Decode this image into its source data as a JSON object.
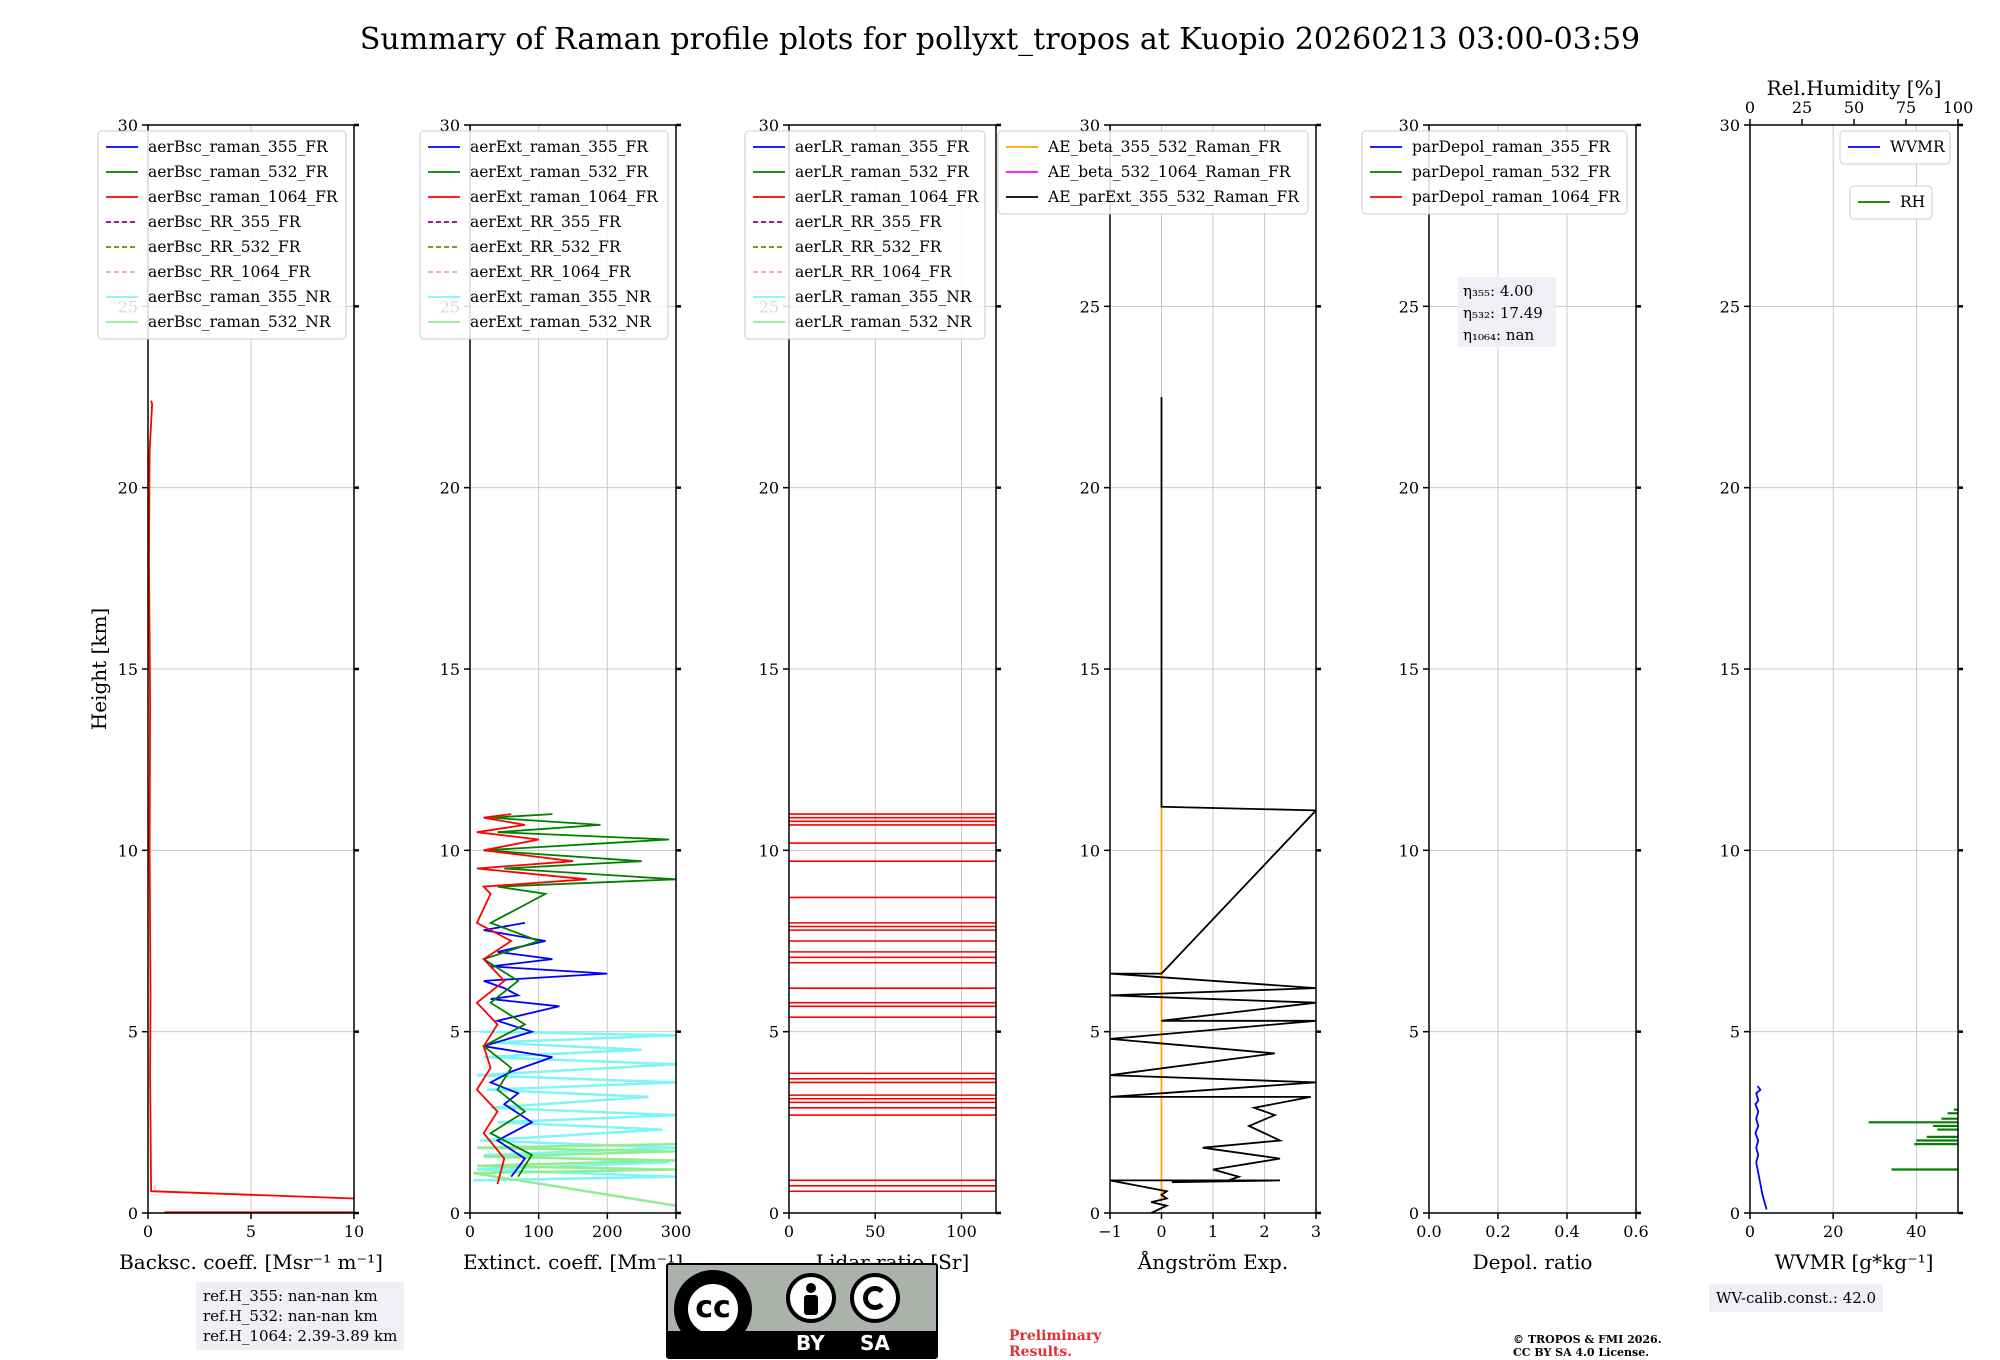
{
  "title": "Summary of Raman profile plots for pollyxt_tropos at Kuopio 20260213 03:00-03:59",
  "colors": {
    "blue": "#0000ff",
    "green": "#008000",
    "red": "#ff0000",
    "purple": "#800080",
    "olive": "#808000",
    "salmon": "#f4a3a0",
    "cyan": "#7ff5f5",
    "lightgreen": "#90ee90",
    "orange": "#ffa500",
    "magenta": "#ff00ff",
    "black": "#000000",
    "grid": "#c8c8c8"
  },
  "chart_data": [
    {
      "type": "line",
      "id": "backscatter",
      "xlabel": "Backsc. coeff. [Msr⁻¹ m⁻¹]",
      "ylabel": "Height [km]",
      "xlim": [
        0,
        10
      ],
      "ylim": [
        0,
        30
      ],
      "xticks": [
        "0",
        "5",
        "10"
      ],
      "xtick_values": [
        0,
        5,
        10
      ],
      "yticks": [
        "0",
        "5",
        "10",
        "15",
        "20",
        "25",
        "30"
      ],
      "ytick_values": [
        0,
        5,
        10,
        15,
        20,
        25,
        30
      ],
      "legend": [
        {
          "label": "aerBsc_raman_355_FR",
          "color": "#0000ff",
          "dash": false
        },
        {
          "label": "aerBsc_raman_532_FR",
          "color": "#008000",
          "dash": false
        },
        {
          "label": "aerBsc_raman_1064_FR",
          "color": "#ff0000",
          "dash": false
        },
        {
          "label": "aerBsc_RR_355_FR",
          "color": "#800080",
          "dash": true
        },
        {
          "label": "aerBsc_RR_532_FR",
          "color": "#808000",
          "dash": true
        },
        {
          "label": "aerBsc_RR_1064_FR",
          "color": "#f4a3a0",
          "dash": true
        },
        {
          "label": "aerBsc_raman_355_NR",
          "color": "#7ff5f5",
          "dash": false
        },
        {
          "label": "aerBsc_raman_532_NR",
          "color": "#90ee90",
          "dash": false
        }
      ],
      "series": [
        {
          "name": "aerBsc_raman_1064_FR",
          "color": "#ff0000",
          "x": [
            10,
            0.15,
            0.1,
            0.12,
            0.08,
            0.1,
            0.05,
            0.08,
            0.2,
            0.15
          ],
          "y": [
            0.4,
            0.6,
            3.8,
            6,
            10,
            14,
            18,
            21,
            22.3,
            22.4
          ]
        },
        {
          "name": "aerBsc_raman_1064_FR_low",
          "color": "#ff0000",
          "x": [
            0.8,
            10
          ],
          "y": [
            0.02,
            0.02
          ]
        }
      ]
    },
    {
      "type": "line",
      "id": "extinction",
      "xlabel": "Extinct. coeff. [Mm⁻¹]",
      "xlim": [
        0,
        300
      ],
      "ylim": [
        0,
        30
      ],
      "xticks": [
        "0",
        "100",
        "200",
        "300"
      ],
      "xtick_values": [
        0,
        100,
        200,
        300
      ],
      "yticks": [
        "0",
        "5",
        "10",
        "15",
        "20",
        "25",
        "30"
      ],
      "ytick_values": [
        0,
        5,
        10,
        15,
        20,
        25,
        30
      ],
      "legend": [
        {
          "label": "aerExt_raman_355_FR",
          "color": "#0000ff",
          "dash": false
        },
        {
          "label": "aerExt_raman_532_FR",
          "color": "#008000",
          "dash": false
        },
        {
          "label": "aerExt_raman_1064_FR",
          "color": "#ff0000",
          "dash": false
        },
        {
          "label": "aerExt_RR_355_FR",
          "color": "#800080",
          "dash": true
        },
        {
          "label": "aerExt_RR_532_FR",
          "color": "#808000",
          "dash": true
        },
        {
          "label": "aerExt_RR_1064_FR",
          "color": "#f4a3a0",
          "dash": true
        },
        {
          "label": "aerExt_raman_355_NR",
          "color": "#7ff5f5",
          "dash": false
        },
        {
          "label": "aerExt_raman_532_NR",
          "color": "#90ee90",
          "dash": false
        }
      ],
      "series": [
        {
          "name": "aerExt_raman_355_NR",
          "color": "#7ff5f5",
          "x": [
            5,
            300,
            10,
            290,
            20,
            300,
            15,
            280,
            40,
            300,
            30,
            260,
            25,
            300,
            10,
            300,
            20,
            250,
            30,
            300,
            15
          ],
          "y": [
            0.9,
            1.0,
            1.2,
            1.4,
            1.6,
            1.8,
            2.0,
            2.3,
            2.5,
            2.7,
            2.9,
            3.2,
            3.4,
            3.6,
            3.8,
            4.1,
            4.3,
            4.5,
            4.7,
            4.9,
            5.0
          ]
        },
        {
          "name": "aerExt_raman_532_NR",
          "color": "#90ee90",
          "x": [
            300,
            5,
            300,
            10,
            300,
            20,
            300,
            10,
            300
          ],
          "y": [
            0.2,
            1.1,
            1.2,
            1.3,
            1.45,
            1.55,
            1.7,
            1.8,
            1.9
          ]
        },
        {
          "name": "aerExt_raman_355_FR",
          "color": "#0000ff",
          "x": [
            60,
            80,
            40,
            90,
            50,
            70,
            30,
            60,
            120,
            20,
            90,
            40,
            130,
            30,
            70,
            50,
            20,
            200,
            30,
            120,
            40,
            110,
            20,
            80
          ],
          "y": [
            1.0,
            1.5,
            2.0,
            2.5,
            3.0,
            3.3,
            3.6,
            3.9,
            4.3,
            4.6,
            5.0,
            5.3,
            5.7,
            5.9,
            6.0,
            6.2,
            6.4,
            6.6,
            6.8,
            7.0,
            7.2,
            7.5,
            7.8,
            8.0
          ]
        },
        {
          "name": "aerExt_raman_532_FR",
          "color": "#008000",
          "x": [
            70,
            90,
            30,
            80,
            40,
            60,
            20,
            80,
            30,
            70,
            20,
            100,
            30,
            110,
            40,
            300,
            50,
            250,
            20,
            290,
            40,
            190,
            30,
            120
          ],
          "y": [
            1.0,
            1.6,
            2.2,
            2.8,
            3.4,
            4.0,
            4.6,
            5.2,
            5.8,
            6.4,
            7.0,
            7.5,
            8.0,
            8.8,
            9.0,
            9.2,
            9.5,
            9.7,
            10.0,
            10.3,
            10.5,
            10.7,
            10.9,
            11.0
          ]
        },
        {
          "name": "aerExt_raman_1064_FR",
          "color": "#ff0000",
          "x": [
            40,
            50,
            20,
            40,
            10,
            30,
            20,
            40,
            10,
            50,
            20,
            60,
            10,
            30,
            20,
            170,
            10,
            150,
            20,
            100,
            10,
            80,
            20,
            60
          ],
          "y": [
            0.8,
            1.5,
            2.2,
            2.8,
            3.4,
            4.0,
            4.6,
            5.2,
            5.8,
            6.4,
            7.0,
            7.5,
            8.0,
            8.8,
            9.0,
            9.2,
            9.5,
            9.7,
            10.0,
            10.3,
            10.5,
            10.7,
            10.9,
            11.0
          ]
        }
      ]
    },
    {
      "type": "line",
      "id": "lidar_ratio",
      "xlabel": "Lidar ratio [Sr]",
      "xlim": [
        0,
        120
      ],
      "ylim": [
        0,
        30
      ],
      "xticks": [
        "0",
        "50",
        "100"
      ],
      "xtick_values": [
        0,
        50,
        100
      ],
      "yticks": [
        "0",
        "5",
        "10",
        "15",
        "20",
        "25",
        "30"
      ],
      "ytick_values": [
        0,
        5,
        10,
        15,
        20,
        25,
        30
      ],
      "legend": [
        {
          "label": "aerLR_raman_355_FR",
          "color": "#0000ff",
          "dash": false
        },
        {
          "label": "aerLR_raman_532_FR",
          "color": "#008000",
          "dash": false
        },
        {
          "label": "aerLR_raman_1064_FR",
          "color": "#ff0000",
          "dash": false
        },
        {
          "label": "aerLR_RR_355_FR",
          "color": "#800080",
          "dash": true
        },
        {
          "label": "aerLR_RR_532_FR",
          "color": "#808000",
          "dash": true
        },
        {
          "label": "aerLR_RR_1064_FR",
          "color": "#f4a3a0",
          "dash": true
        },
        {
          "label": "aerLR_raman_355_NR",
          "color": "#7ff5f5",
          "dash": false
        },
        {
          "label": "aerLR_raman_532_NR",
          "color": "#90ee90",
          "dash": false
        }
      ],
      "hlines": [
        {
          "name": "aerLR_raman_1064_FR",
          "color": "#ff0000",
          "y": [
            0.6,
            0.75,
            0.9,
            2.7,
            2.9,
            3.05,
            3.15,
            3.25,
            3.6,
            3.7,
            3.85,
            5.4,
            5.7,
            5.8,
            6.2,
            6.9,
            7.05,
            7.2,
            7.5,
            7.8,
            7.9,
            8.0,
            8.7,
            9.7,
            10.2,
            10.7,
            10.8,
            10.9,
            11.0
          ],
          "x_from": 0,
          "x_to": 120
        }
      ]
    },
    {
      "type": "line",
      "id": "angstrom",
      "xlabel": "Ångström Exp.",
      "xlim": [
        -1,
        3
      ],
      "ylim": [
        0,
        30
      ],
      "xticks": [
        "−1",
        "0",
        "1",
        "2",
        "3"
      ],
      "xtick_values": [
        -1,
        0,
        1,
        2,
        3
      ],
      "yticks": [
        "0",
        "5",
        "10",
        "15",
        "20",
        "25",
        "30"
      ],
      "ytick_values": [
        0,
        5,
        10,
        15,
        20,
        25,
        30
      ],
      "legend": [
        {
          "label": "AE_beta_355_532_Raman_FR",
          "color": "#ffa500",
          "dash": false
        },
        {
          "label": "AE_beta_532_1064_Raman_FR",
          "color": "#ff00ff",
          "dash": false
        },
        {
          "label": "AE_parExt_355_532_Raman_FR",
          "color": "#000000",
          "dash": false
        }
      ],
      "series": [
        {
          "name": "AE_beta_355_532_Raman_FR",
          "color": "#ffa500",
          "x": [
            0,
            0,
            0
          ],
          "y": [
            0.3,
            11.0,
            11.2
          ]
        },
        {
          "name": "AE_parExt_355_532_Raman_FR",
          "color": "#000000",
          "x": [
            0,
            0,
            3,
            0,
            -1,
            3,
            -1,
            3,
            0,
            3,
            -1,
            2.2,
            -1,
            3,
            -1,
            2.9,
            1.8,
            2.2,
            1.7,
            2.3,
            0.8,
            2.3,
            1.0,
            1.5,
            1.3,
            2.3,
            0.2,
            1.6,
            -1,
            1.3,
            1.0,
            2.3,
            1.0,
            0.2,
            -1,
            0.1,
            0,
            0.1,
            -0.2,
            0.1,
            -0.2
          ],
          "y": [
            22.5,
            11.2,
            11.1,
            6.6,
            6.6,
            6.2,
            6.0,
            5.8,
            5.3,
            5.3,
            4.8,
            4.4,
            3.8,
            3.6,
            3.2,
            3.2,
            2.9,
            2.7,
            2.4,
            2.0,
            1.8,
            1.5,
            1.2,
            1.0,
            0.9,
            0.9,
            0.85,
            0.9,
            0.9,
            0.9,
            0.9,
            0.9,
            0.9,
            0.9,
            0.9,
            0.6,
            0.5,
            0.4,
            0.3,
            0.2,
            0.0
          ]
        }
      ]
    },
    {
      "type": "line",
      "id": "depol",
      "xlabel": "Depol. ratio",
      "xlim": [
        0,
        0.6
      ],
      "ylim": [
        0,
        30
      ],
      "xticks": [
        "0.0",
        "0.2",
        "0.4",
        "0.6"
      ],
      "xtick_values": [
        0,
        0.2,
        0.4,
        0.6
      ],
      "yticks": [
        "0",
        "5",
        "10",
        "15",
        "20",
        "25",
        "30"
      ],
      "ytick_values": [
        0,
        5,
        10,
        15,
        20,
        25,
        30
      ],
      "legend": [
        {
          "label": "parDepol_raman_355_FR",
          "color": "#0000ff",
          "dash": false
        },
        {
          "label": "parDepol_raman_532_FR",
          "color": "#008000",
          "dash": false
        },
        {
          "label": "parDepol_raman_1064_FR",
          "color": "#ff0000",
          "dash": false
        }
      ],
      "eta": {
        "eta355": "η₃₅₅: 4.00",
        "eta532": "η₅₃₂: 17.49",
        "eta1064": "η₁₀₆₄: nan"
      }
    },
    {
      "type": "line",
      "id": "wvmr",
      "xlabel": "WVMR [g*kg⁻¹]",
      "x2label": "Rel.Humidity [%]",
      "xlim": [
        0,
        50
      ],
      "x2lim": [
        0,
        100
      ],
      "ylim": [
        0,
        30
      ],
      "xticks": [
        "0",
        "20",
        "40"
      ],
      "xtick_values": [
        0,
        20,
        40
      ],
      "x2ticks": [
        "0",
        "25",
        "50",
        "75",
        "100"
      ],
      "x2tick_values": [
        0,
        25,
        50,
        75,
        100
      ],
      "yticks": [
        "0",
        "5",
        "10",
        "15",
        "20",
        "25",
        "30"
      ],
      "ytick_values": [
        0,
        5,
        10,
        15,
        20,
        25,
        30
      ],
      "legend": [
        {
          "label": "WVMR",
          "color": "#0000ff"
        }
      ],
      "legend2": [
        {
          "label": "RH",
          "color": "#008000"
        }
      ],
      "series": [
        {
          "name": "WVMR",
          "color": "#0000ff",
          "x": [
            4,
            3,
            2.5,
            2,
            1.5,
            2,
            1.5,
            2,
            1.3,
            2,
            1.5,
            2,
            1.3,
            2,
            1.5,
            2.5,
            1.8
          ],
          "y": [
            0.1,
            0.5,
            0.8,
            1.1,
            1.4,
            1.6,
            1.8,
            2.0,
            2.2,
            2.4,
            2.6,
            2.8,
            3.0,
            3.1,
            3.3,
            3.4,
            3.5
          ]
        },
        {
          "name": "RH",
          "color": "#008000",
          "axis": "x2",
          "hlines": [
            {
              "y": 1.2,
              "x1": 68,
              "x2": 100
            },
            {
              "y": 1.9,
              "x1": 79,
              "x2": 100
            },
            {
              "y": 2.0,
              "x1": 80,
              "x2": 100
            },
            {
              "y": 2.1,
              "x1": 85,
              "x2": 100
            },
            {
              "y": 2.3,
              "x1": 90,
              "x2": 100
            },
            {
              "y": 2.4,
              "x1": 88,
              "x2": 100
            },
            {
              "y": 2.5,
              "x1": 57,
              "x2": 100
            },
            {
              "y": 2.6,
              "x1": 92,
              "x2": 100
            },
            {
              "y": 2.75,
              "x1": 95,
              "x2": 100
            },
            {
              "y": 2.85,
              "x1": 98,
              "x2": 100
            }
          ]
        }
      ]
    }
  ],
  "refbox": {
    "line1": "ref.H_355: nan-nan km",
    "line2": "ref.H_532: nan-nan km",
    "line3": "ref.H_1064: 2.39-3.89 km"
  },
  "license": {
    "cc": "cc",
    "by": "BY",
    "sa": "SA"
  },
  "preliminary": {
    "line1": "Preliminary",
    "line2": "Results."
  },
  "copyright": {
    "line1": "© TROPOS & FMI 2026.",
    "line2": "CC BY SA 4.0 License."
  },
  "wv_calib": "WV-calib.const.: 42.0"
}
